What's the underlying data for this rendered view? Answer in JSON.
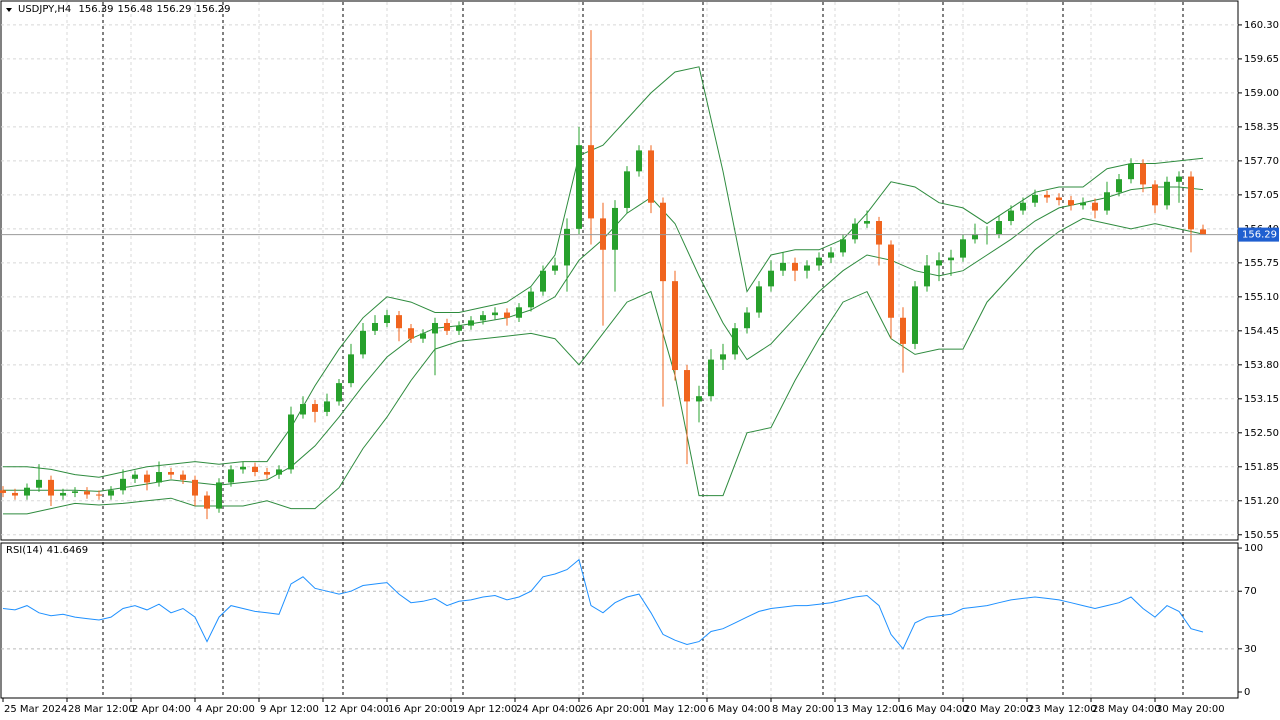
{
  "chart_data": [
    {
      "type": "candlestick",
      "symbol": "USDJPY,H4",
      "xlim": [
        -0.5,
        308.75
      ],
      "ylim": [
        150.45,
        160.7
      ],
      "yticks": [
        {
          "value": 160.3,
          "label": "160.30"
        },
        159.65,
        {
          "value": 159,
          "label": "159.00"
        },
        158.35,
        {
          "value": 157.7,
          "label": "157.70"
        },
        157.05,
        {
          "value": 156.4,
          "label": "156.40"
        },
        155.75,
        {
          "value": 155.1,
          "label": "155.10"
        },
        154.45,
        {
          "value": 153.8,
          "label": "153.80"
        },
        153.15,
        {
          "value": 152.5,
          "label": "152.50"
        },
        151.85,
        {
          "value": 151.2,
          "label": "151.20"
        },
        150.55
      ],
      "xticks": [
        {
          "value": 0,
          "label": "25 Mar 2024"
        },
        {
          "value": 16,
          "label": "28 Mar 12:00"
        },
        {
          "value": 32,
          "label": "2 Apr 04:00"
        },
        {
          "value": 48,
          "label": "4 Apr 20:00"
        },
        {
          "value": 64,
          "label": "9 Apr 12:00"
        },
        {
          "value": 80,
          "label": "12 Apr 04:00"
        },
        {
          "value": 96,
          "label": "16 Apr 20:00"
        },
        {
          "value": 112,
          "label": "19 Apr 12:00"
        },
        {
          "value": 128,
          "label": "24 Apr 04:00"
        },
        {
          "value": 144,
          "label": "26 Apr 20:00"
        },
        {
          "value": 160,
          "label": "1 May 12:00"
        },
        {
          "value": 176,
          "label": "6 May 04:00"
        },
        {
          "value": 192,
          "label": "8 May 20:00"
        },
        {
          "value": 208,
          "label": "13 May 12:00"
        },
        {
          "value": 224,
          "label": "16 May 04:00"
        },
        {
          "value": 240,
          "label": "20 May 20:00"
        },
        {
          "value": 256,
          "label": "23 May 12:00"
        },
        {
          "value": 272,
          "label": "28 May 04:00"
        },
        {
          "value": 288,
          "label": "30 May 20:00"
        }
      ],
      "grid": true,
      "up_color": "#27a02c",
      "down_color": "#f0641e",
      "band_color": "#2e8b3e",
      "x": [
        0,
        3,
        6,
        9,
        12,
        15,
        18,
        21,
        24,
        27,
        30,
        33,
        36,
        39,
        42,
        45,
        48,
        51,
        54,
        57,
        60,
        63,
        66,
        69,
        72,
        75,
        78,
        81,
        84,
        87,
        90,
        93,
        96,
        99,
        102,
        105,
        108,
        111,
        114,
        117,
        120,
        123,
        126,
        129,
        132,
        135,
        138,
        141,
        144,
        147,
        150,
        153,
        156,
        159,
        162,
        165,
        168,
        171,
        174,
        177,
        180,
        183,
        186,
        189,
        192,
        195,
        198,
        201,
        204,
        207,
        210,
        213,
        216,
        219,
        222,
        225,
        228,
        231,
        234,
        237,
        240,
        243,
        246,
        249,
        252,
        255,
        258,
        261,
        264,
        267,
        270,
        273,
        276,
        279,
        282,
        285,
        288,
        291,
        294,
        297,
        300
      ],
      "candles": [
        [
          151.4,
          151.48,
          151.27,
          151.35
        ],
        [
          151.35,
          151.43,
          151.22,
          151.3
        ],
        [
          151.3,
          151.53,
          151.22,
          151.45
        ],
        [
          151.45,
          151.9,
          151.37,
          151.6
        ],
        [
          151.6,
          151.68,
          151.1,
          151.3
        ],
        [
          151.3,
          151.43,
          151.22,
          151.35
        ],
        [
          151.35,
          151.46,
          151.27,
          151.38
        ],
        [
          151.38,
          151.46,
          151.24,
          151.32
        ],
        [
          151.32,
          151.4,
          151.22,
          151.3
        ],
        [
          151.3,
          151.48,
          151.22,
          151.4
        ],
        [
          151.4,
          151.8,
          151.32,
          151.62
        ],
        [
          151.62,
          151.78,
          151.54,
          151.7
        ],
        [
          151.7,
          151.78,
          151.4,
          151.55
        ],
        [
          151.55,
          151.95,
          151.47,
          151.75
        ],
        [
          151.75,
          151.83,
          151.62,
          151.7
        ],
        [
          151.7,
          151.78,
          151.52,
          151.6
        ],
        [
          151.6,
          151.68,
          151.1,
          151.3
        ],
        [
          151.3,
          151.38,
          150.85,
          151.05
        ],
        [
          151.05,
          151.63,
          150.97,
          151.55
        ],
        [
          151.55,
          151.88,
          151.47,
          151.8
        ],
        [
          151.8,
          151.95,
          151.72,
          151.85
        ],
        [
          151.85,
          151.93,
          151.67,
          151.75
        ],
        [
          151.75,
          151.83,
          151.62,
          151.7
        ],
        [
          151.7,
          151.88,
          151.62,
          151.8
        ],
        [
          151.8,
          153.0,
          151.72,
          152.85
        ],
        [
          152.85,
          153.2,
          152.77,
          153.05
        ],
        [
          153.05,
          153.13,
          152.7,
          152.9
        ],
        [
          152.9,
          153.25,
          152.82,
          153.1
        ],
        [
          153.1,
          153.53,
          153.02,
          153.45
        ],
        [
          153.45,
          154.2,
          153.37,
          154.0
        ],
        [
          154.0,
          154.6,
          153.92,
          154.45
        ],
        [
          154.45,
          154.75,
          154.37,
          154.6
        ],
        [
          154.6,
          154.85,
          154.52,
          154.75
        ],
        [
          154.75,
          154.83,
          154.25,
          154.5
        ],
        [
          154.5,
          154.58,
          154.22,
          154.3
        ],
        [
          154.3,
          154.48,
          154.22,
          154.4
        ],
        [
          154.4,
          154.7,
          153.6,
          154.6
        ],
        [
          154.6,
          154.68,
          154.37,
          154.45
        ],
        [
          154.45,
          154.63,
          154.37,
          154.55
        ],
        [
          154.55,
          154.73,
          154.47,
          154.65
        ],
        [
          154.65,
          154.83,
          154.57,
          154.75
        ],
        [
          154.75,
          154.9,
          154.67,
          154.8
        ],
        [
          154.8,
          154.88,
          154.55,
          154.7
        ],
        [
          154.7,
          154.98,
          154.62,
          154.9
        ],
        [
          154.9,
          155.28,
          154.82,
          155.2
        ],
        [
          155.2,
          155.7,
          155.12,
          155.6
        ],
        [
          155.6,
          155.85,
          155.52,
          155.7
        ],
        [
          155.7,
          156.6,
          155.2,
          156.4
        ],
        [
          156.4,
          158.35,
          156.3,
          158.0
        ],
        [
          158.0,
          160.2,
          156.1,
          156.6
        ],
        [
          156.6,
          156.9,
          154.55,
          156.0
        ],
        [
          156.0,
          156.95,
          155.2,
          156.8
        ],
        [
          156.8,
          157.6,
          156.7,
          157.5
        ],
        [
          157.5,
          158.0,
          157.4,
          157.9
        ],
        [
          157.9,
          158.0,
          156.7,
          156.9
        ],
        [
          156.9,
          157.0,
          153.0,
          155.4
        ],
        [
          155.4,
          155.6,
          153.5,
          153.7
        ],
        [
          153.7,
          153.8,
          151.9,
          153.1
        ],
        [
          153.1,
          153.4,
          152.7,
          153.2
        ],
        [
          153.2,
          154.1,
          153.1,
          153.9
        ],
        [
          153.9,
          154.2,
          153.7,
          154.0
        ],
        [
          154.0,
          154.6,
          153.9,
          154.5
        ],
        [
          154.5,
          154.9,
          154.4,
          154.8
        ],
        [
          154.8,
          155.4,
          154.7,
          155.3
        ],
        [
          155.3,
          155.8,
          155.2,
          155.6
        ],
        [
          155.6,
          155.95,
          155.5,
          155.75
        ],
        [
          155.75,
          155.85,
          155.4,
          155.6
        ],
        [
          155.6,
          155.8,
          155.45,
          155.7
        ],
        [
          155.7,
          155.95,
          155.6,
          155.85
        ],
        [
          155.85,
          156.05,
          155.75,
          155.95
        ],
        [
          155.95,
          156.3,
          155.87,
          156.2
        ],
        [
          156.2,
          156.6,
          156.12,
          156.5
        ],
        [
          156.5,
          156.75,
          156.42,
          156.55
        ],
        [
          156.55,
          156.63,
          155.7,
          156.1
        ],
        [
          156.1,
          156.18,
          154.3,
          154.7
        ],
        [
          154.7,
          154.9,
          153.65,
          154.2
        ],
        [
          154.2,
          155.4,
          154.1,
          155.3
        ],
        [
          155.3,
          155.9,
          155.2,
          155.7
        ],
        [
          155.7,
          155.95,
          155.4,
          155.8
        ],
        [
          155.8,
          156.0,
          155.5,
          155.85
        ],
        [
          155.85,
          156.3,
          155.77,
          156.2
        ],
        [
          156.2,
          156.5,
          156.12,
          156.3
        ],
        [
          156.3,
          156.45,
          156.1,
          156.3
        ],
        [
          156.3,
          156.65,
          156.22,
          156.55
        ],
        [
          156.55,
          156.85,
          156.47,
          156.75
        ],
        [
          156.75,
          157.0,
          156.67,
          156.9
        ],
        [
          156.9,
          157.15,
          156.82,
          157.05
        ],
        [
          157.05,
          157.13,
          156.9,
          157.0
        ],
        [
          157.0,
          157.08,
          156.85,
          156.95
        ],
        [
          156.95,
          157.03,
          156.75,
          156.85
        ],
        [
          156.85,
          157.0,
          156.77,
          156.9
        ],
        [
          156.9,
          156.98,
          156.6,
          156.75
        ],
        [
          156.75,
          157.3,
          156.67,
          157.1
        ],
        [
          157.1,
          157.45,
          157.02,
          157.35
        ],
        [
          157.35,
          157.75,
          157.27,
          157.65
        ],
        [
          157.65,
          157.73,
          157.1,
          157.25
        ],
        [
          157.25,
          157.33,
          156.7,
          156.85
        ],
        [
          156.85,
          157.4,
          156.77,
          157.3
        ],
        [
          157.3,
          157.5,
          156.9,
          157.4
        ],
        [
          157.4,
          157.5,
          155.95,
          156.39
        ],
        [
          156.39,
          156.48,
          156.29,
          156.29
        ]
      ],
      "bands": {
        "x": [
          0,
          6,
          12,
          18,
          24,
          30,
          36,
          42,
          48,
          54,
          60,
          66,
          72,
          78,
          84,
          90,
          96,
          102,
          108,
          114,
          120,
          126,
          132,
          138,
          144,
          150,
          156,
          162,
          168,
          174,
          180,
          186,
          192,
          198,
          204,
          210,
          216,
          222,
          228,
          234,
          240,
          246,
          252,
          258,
          264,
          270,
          276,
          282,
          288,
          294,
          300
        ],
        "upper": [
          151.85,
          151.85,
          151.8,
          151.7,
          151.65,
          151.75,
          151.85,
          151.9,
          151.95,
          151.9,
          151.95,
          151.95,
          152.6,
          153.4,
          154.1,
          154.7,
          155.1,
          155.0,
          154.8,
          154.8,
          154.9,
          155.0,
          155.3,
          155.9,
          157.8,
          158.0,
          158.5,
          159.0,
          159.4,
          159.5,
          157.5,
          155.2,
          155.9,
          156.0,
          156.0,
          156.2,
          156.7,
          157.3,
          157.2,
          156.9,
          156.8,
          156.5,
          156.8,
          157.1,
          157.2,
          157.2,
          157.55,
          157.65,
          157.65,
          157.7,
          157.75
        ],
        "middle": [
          151.4,
          151.4,
          151.4,
          151.4,
          151.38,
          151.45,
          151.52,
          151.6,
          151.55,
          151.5,
          151.55,
          151.6,
          151.85,
          152.25,
          152.8,
          153.4,
          153.95,
          154.3,
          154.5,
          154.55,
          154.62,
          154.7,
          154.85,
          155.1,
          155.8,
          156.2,
          156.7,
          157.0,
          156.5,
          155.5,
          154.6,
          153.9,
          154.2,
          154.7,
          155.2,
          155.6,
          155.9,
          155.8,
          155.6,
          155.5,
          155.6,
          155.9,
          156.2,
          156.55,
          156.8,
          156.9,
          157.0,
          157.15,
          157.2,
          157.2,
          157.15
        ],
        "lower": [
          150.95,
          150.95,
          151.05,
          151.15,
          151.12,
          151.15,
          151.2,
          151.25,
          151.1,
          151.1,
          151.1,
          151.2,
          151.05,
          151.05,
          151.45,
          152.2,
          152.8,
          153.5,
          154.1,
          154.25,
          154.3,
          154.35,
          154.4,
          154.3,
          153.8,
          154.4,
          155.0,
          155.2,
          153.6,
          151.3,
          151.3,
          152.5,
          152.6,
          153.5,
          154.3,
          155.0,
          155.2,
          154.3,
          154.0,
          154.1,
          154.1,
          155.0,
          155.5,
          156.0,
          156.35,
          156.6,
          156.5,
          156.4,
          156.5,
          156.4,
          156.3
        ]
      }
    },
    {
      "type": "line",
      "name": "RSI(14)",
      "color": "#1e90ff",
      "ylim": [
        -4,
        103.5
      ],
      "yticks": [
        100,
        70,
        30,
        0
      ],
      "x": [
        0,
        3,
        6,
        9,
        12,
        15,
        18,
        21,
        24,
        27,
        30,
        33,
        36,
        39,
        42,
        45,
        48,
        51,
        54,
        57,
        60,
        63,
        66,
        69,
        72,
        75,
        78,
        81,
        84,
        87,
        90,
        93,
        96,
        99,
        102,
        105,
        108,
        111,
        114,
        117,
        120,
        123,
        126,
        129,
        132,
        135,
        138,
        141,
        144,
        147,
        150,
        153,
        156,
        159,
        162,
        165,
        168,
        171,
        174,
        177,
        180,
        183,
        186,
        189,
        192,
        195,
        198,
        201,
        204,
        207,
        210,
        213,
        216,
        219,
        222,
        225,
        228,
        231,
        234,
        237,
        240,
        243,
        246,
        249,
        252,
        255,
        258,
        261,
        264,
        267,
        270,
        273,
        276,
        279,
        282,
        285,
        288,
        291,
        294,
        297,
        300
      ],
      "values": [
        58,
        57,
        60,
        55,
        53,
        54,
        52,
        51,
        50,
        52,
        58,
        60,
        57,
        61,
        55,
        58,
        52,
        35,
        52,
        60,
        58,
        56,
        55,
        54,
        75,
        80,
        72,
        70,
        68,
        70,
        74,
        75,
        76,
        68,
        62,
        63,
        65,
        60,
        63,
        64,
        66,
        67,
        64,
        66,
        70,
        80,
        82,
        85,
        92,
        60,
        55,
        62,
        66,
        68,
        55,
        40,
        36,
        33,
        35,
        42,
        44,
        48,
        52,
        56,
        58,
        59,
        60,
        60,
        61,
        62,
        64,
        66,
        67,
        60,
        40,
        30,
        48,
        52,
        53,
        54,
        58,
        59,
        60,
        62,
        64,
        65,
        66,
        65,
        64,
        62,
        60,
        58,
        60,
        62,
        66,
        58,
        52,
        60,
        56,
        44,
        41.6469
      ]
    }
  ]
}
